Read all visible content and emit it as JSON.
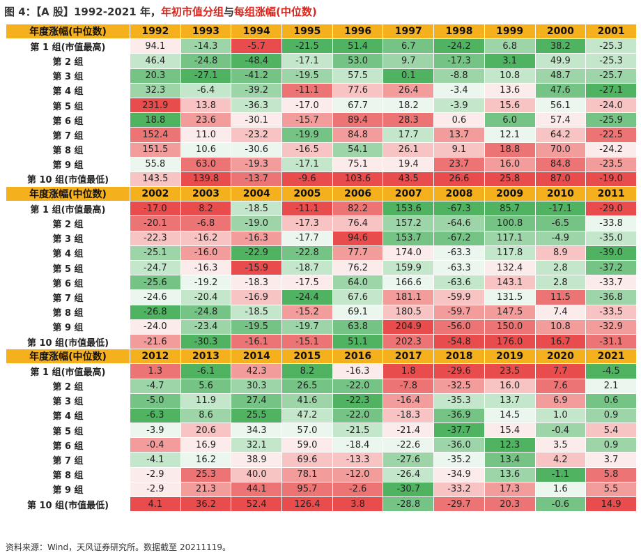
{
  "title": {
    "prefix": "图 4：【A 股】1992-2021 年，",
    "red1": "年初市值分组",
    "mid": "与",
    "red2": "每组涨幅(中位数)"
  },
  "header_label": "年度涨幅(中位数)",
  "row_labels": [
    "第 1 组(市值最高)",
    "第 2 组",
    "第 3 组",
    "第 4 组",
    "第 5 组",
    "第 6 组",
    "第 7 组",
    "第 8 组",
    "第 9 组",
    "第 10 组(市值最低)"
  ],
  "colors": {
    "header": "#f5b01e",
    "positive": "#e84c4c",
    "negative": "#4fb362",
    "neutral": "#ffffff"
  },
  "blocks": [
    {
      "years": [
        "1992",
        "1993",
        "1994",
        "1995",
        "1996",
        "1997",
        "1998",
        "1999",
        "2000",
        "2001"
      ],
      "rows": [
        [
          "94.1",
          "-14.3",
          "-5.7",
          "-21.5",
          "51.4",
          "6.7",
          "-24.2",
          "6.8",
          "38.2",
          "-25.3"
        ],
        [
          "46.4",
          "-24.8",
          "-48.4",
          "-17.1",
          "53.0",
          "9.7",
          "-17.3",
          "3.1",
          "49.9",
          "-25.3"
        ],
        [
          "20.3",
          "-27.1",
          "-41.2",
          "-19.5",
          "57.5",
          "0.1",
          "-8.8",
          "10.8",
          "48.7",
          "-25.7"
        ],
        [
          "32.3",
          "-6.4",
          "-39.2",
          "-11.1",
          "77.6",
          "26.4",
          "-3.4",
          "13.6",
          "47.6",
          "-27.1"
        ],
        [
          "231.9",
          "13.8",
          "-36.3",
          "-17.0",
          "67.7",
          "18.2",
          "-3.9",
          "15.6",
          "56.1",
          "-24.0"
        ],
        [
          "18.8",
          "23.6",
          "-30.1",
          "-15.7",
          "89.4",
          "28.3",
          "0.6",
          "6.0",
          "57.4",
          "-25.9"
        ],
        [
          "152.4",
          "11.0",
          "-23.2",
          "-19.9",
          "84.8",
          "17.7",
          "13.7",
          "12.1",
          "64.2",
          "-22.5"
        ],
        [
          "151.5",
          "10.6",
          "-30.6",
          "-16.5",
          "54.1",
          "26.1",
          "9.1",
          "18.8",
          "70.0",
          "-24.2"
        ],
        [
          "55.8",
          "63.0",
          "-19.3",
          "-17.1",
          "75.1",
          "19.4",
          "23.7",
          "16.0",
          "84.8",
          "-23.5"
        ],
        [
          "143.5",
          "139.8",
          "-13.7",
          "-9.6",
          "103.6",
          "43.5",
          "26.6",
          "25.8",
          "87.0",
          "-19.0"
        ]
      ]
    },
    {
      "years": [
        "2002",
        "2003",
        "2004",
        "2005",
        "2006",
        "2007",
        "2008",
        "2009",
        "2010",
        "2011"
      ],
      "rows": [
        [
          "-17.0",
          "8.2",
          "-18.5",
          "-11.1",
          "82.2",
          "153.6",
          "-67.3",
          "85.7",
          "-17.1",
          "-29.0"
        ],
        [
          "-20.1",
          "-6.8",
          "-19.0",
          "-17.3",
          "76.4",
          "157.2",
          "-64.6",
          "100.8",
          "-6.5",
          "-33.8"
        ],
        [
          "-22.3",
          "-16.2",
          "-16.3",
          "-17.7",
          "94.6",
          "153.7",
          "-67.2",
          "117.1",
          "-4.9",
          "-35.0"
        ],
        [
          "-25.1",
          "-16.0",
          "-22.9",
          "-22.8",
          "77.7",
          "174.0",
          "-63.3",
          "117.8",
          "8.9",
          "-39.0"
        ],
        [
          "-24.7",
          "-16.3",
          "-15.9",
          "-18.7",
          "76.2",
          "159.9",
          "-63.3",
          "132.4",
          "2.8",
          "-37.2"
        ],
        [
          "-25.6",
          "-19.2",
          "-18.3",
          "-17.5",
          "64.0",
          "166.6",
          "-63.6",
          "143.1",
          "2.8",
          "-33.7"
        ],
        [
          "-24.6",
          "-20.4",
          "-16.9",
          "-24.4",
          "67.6",
          "181.1",
          "-59.9",
          "131.5",
          "11.5",
          "-36.8"
        ],
        [
          "-26.8",
          "-24.8",
          "-18.5",
          "-15.2",
          "69.1",
          "180.5",
          "-59.7",
          "147.5",
          "7.4",
          "-33.5"
        ],
        [
          "-24.0",
          "-23.4",
          "-19.5",
          "-19.7",
          "63.8",
          "204.9",
          "-56.0",
          "150.0",
          "10.8",
          "-32.9"
        ],
        [
          "-21.6",
          "-30.3",
          "-16.1",
          "-15.1",
          "51.1",
          "202.3",
          "-54.8",
          "176.0",
          "16.7",
          "-31.1"
        ]
      ]
    },
    {
      "years": [
        "2012",
        "2013",
        "2014",
        "2015",
        "2016",
        "2017",
        "2018",
        "2019",
        "2020",
        "2021"
      ],
      "rows": [
        [
          "1.3",
          "-6.1",
          "42.3",
          "8.2",
          "-16.3",
          "1.8",
          "-29.6",
          "23.5",
          "7.7",
          "-4.5"
        ],
        [
          "-4.7",
          "5.6",
          "30.3",
          "26.5",
          "-22.0",
          "-7.8",
          "-32.5",
          "16.0",
          "7.6",
          "2.1"
        ],
        [
          "-5.0",
          "11.9",
          "27.4",
          "41.6",
          "-22.3",
          "-16.4",
          "-35.3",
          "13.7",
          "6.9",
          "0.6"
        ],
        [
          "-6.3",
          "8.6",
          "25.5",
          "47.2",
          "-22.0",
          "-18.3",
          "-36.9",
          "14.5",
          "1.0",
          "0.9"
        ],
        [
          "-3.9",
          "20.6",
          "34.3",
          "57.0",
          "-21.5",
          "-21.4",
          "-37.7",
          "15.4",
          "-0.4",
          "5.4"
        ],
        [
          "-0.4",
          "16.9",
          "32.1",
          "59.0",
          "-18.4",
          "-22.6",
          "-36.0",
          "12.3",
          "3.5",
          "0.9"
        ],
        [
          "-4.1",
          "16.2",
          "38.9",
          "69.6",
          "-13.3",
          "-27.6",
          "-35.2",
          "13.4",
          "4.2",
          "3.7"
        ],
        [
          "-2.9",
          "25.3",
          "40.0",
          "78.1",
          "-12.0",
          "-26.4",
          "-34.9",
          "13.6",
          "-1.1",
          "5.8"
        ],
        [
          "-2.9",
          "21.3",
          "44.1",
          "95.7",
          "-2.6",
          "-30.7",
          "-33.2",
          "17.3",
          "1.6",
          "5.5"
        ],
        [
          "4.1",
          "36.2",
          "52.4",
          "126.4",
          "3.8",
          "-28.8",
          "-29.7",
          "20.3",
          "-0.6",
          "14.9"
        ]
      ]
    }
  ],
  "source": "资料来源：Wind，天风证券研究所。数据截至 20211119。"
}
